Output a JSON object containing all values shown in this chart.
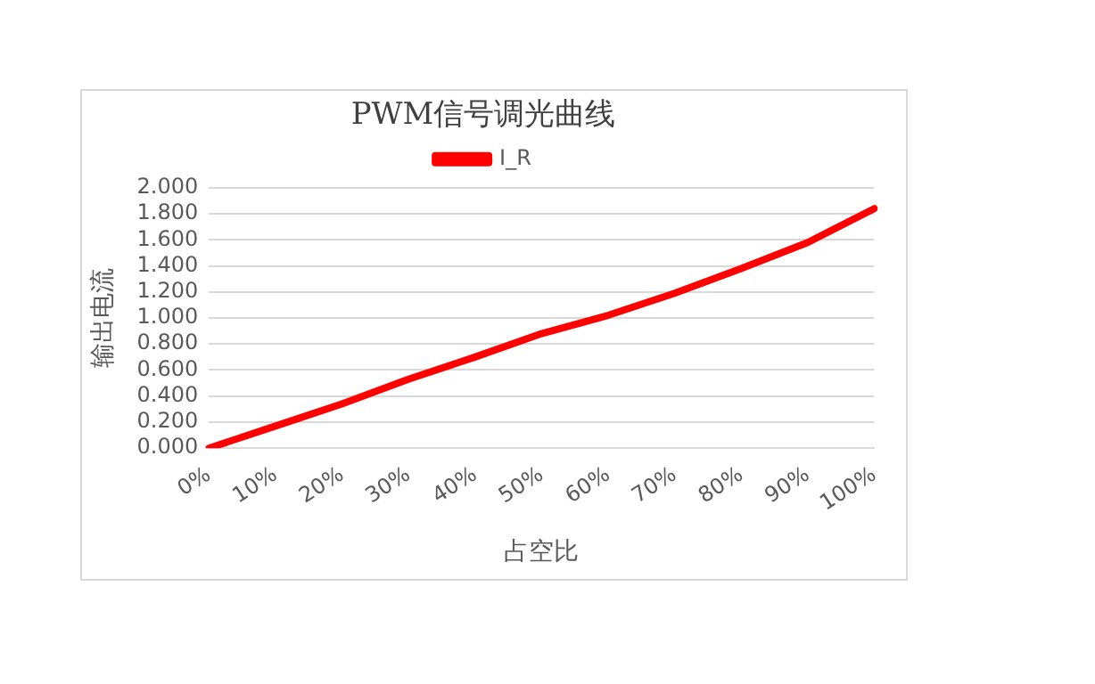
{
  "chart_data": {
    "type": "line",
    "title": "PWM信号调光曲线",
    "xlabel": "占空比",
    "ylabel": "输出电流",
    "categories": [
      "0%",
      "10%",
      "20%",
      "30%",
      "40%",
      "50%",
      "60%",
      "70%",
      "80%",
      "90%",
      "100%"
    ],
    "series": [
      {
        "name": "I_R",
        "color": "#ff0000",
        "values": [
          0,
          0.17,
          0.34,
          0.53,
          0.7,
          0.88,
          1.02,
          1.19,
          1.38,
          1.58,
          1.84
        ]
      }
    ],
    "ylim": [
      0,
      2
    ],
    "yticks": [
      {
        "value": 0,
        "label": "0.000"
      },
      {
        "value": 0.2,
        "label": "0.200"
      },
      {
        "value": 0.4,
        "label": "0.400"
      },
      {
        "value": 0.6,
        "label": "0.600"
      },
      {
        "value": 0.8,
        "label": "0.800"
      },
      {
        "value": 1,
        "label": "1.000"
      },
      {
        "value": 1.2,
        "label": "1.200"
      },
      {
        "value": 1.4,
        "label": "1.400"
      },
      {
        "value": 1.6,
        "label": "1.600"
      },
      {
        "value": 1.8,
        "label": "1.800"
      },
      {
        "value": 2,
        "label": "2.000"
      }
    ],
    "grid": "y",
    "legend": "top",
    "marker": "none",
    "line_style": "solid"
  }
}
